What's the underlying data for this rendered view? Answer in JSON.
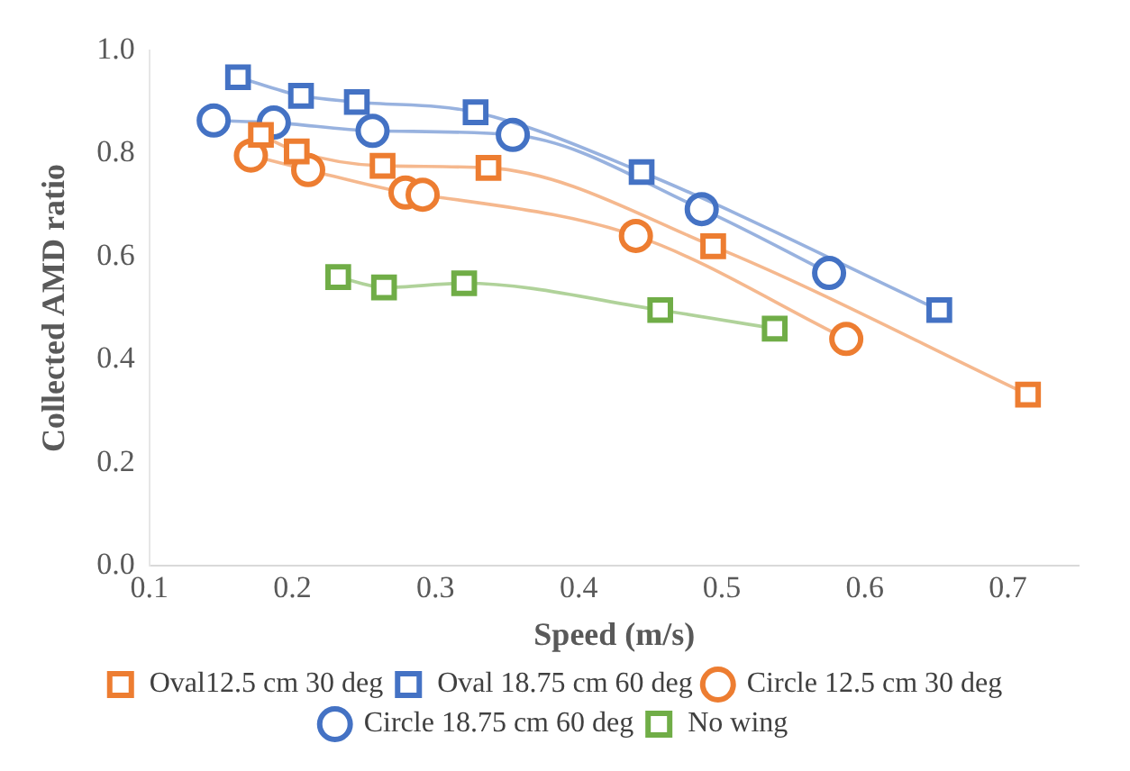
{
  "chart_data": {
    "type": "line",
    "xlabel": "Speed (m/s)",
    "ylabel": "Collected AMD ratio",
    "xlim": [
      0.1,
      0.75
    ],
    "xticks": [
      {
        "value": 0.1,
        "label": "0.1"
      },
      {
        "value": 0.2,
        "label": "0.2"
      },
      {
        "value": 0.3,
        "label": "0.3"
      },
      {
        "value": 0.4,
        "label": "0.4"
      },
      {
        "value": 0.5,
        "label": "0.5"
      },
      {
        "value": 0.6,
        "label": "0.6"
      },
      {
        "value": 0.7,
        "label": "0.7"
      }
    ],
    "ylim": [
      0,
      1
    ],
    "yticks": [
      {
        "value": 0,
        "label": "0.0"
      },
      {
        "value": 0.2,
        "label": "0.2"
      },
      {
        "value": 0.4,
        "label": "0.4"
      },
      {
        "value": 0.6,
        "label": "0.6"
      },
      {
        "value": 0.8,
        "label": "0.8"
      },
      {
        "value": 1,
        "label": "1.0"
      }
    ],
    "grid": false,
    "legend": "bottom",
    "line_style": "solid",
    "series": [
      {
        "name": "No wing",
        "color": "#70ad47",
        "marker": "square",
        "x": [
          0.232,
          0.264,
          0.32,
          0.457,
          0.537
        ],
        "values": [
          0.56,
          0.54,
          0.548,
          0.496,
          0.46
        ]
      },
      {
        "name": "Circle 18.75 cm 60 deg",
        "color": "#4472c4",
        "marker": "circle",
        "x": [
          0.145,
          0.187,
          0.256,
          0.354,
          0.486,
          0.575
        ],
        "values": [
          0.864,
          0.86,
          0.844,
          0.836,
          0.692,
          0.568
        ]
      },
      {
        "name": "Circle 12.5 cm 30 deg",
        "color": "#ed7d31",
        "marker": "circle",
        "x": [
          0.171,
          0.211,
          0.279,
          0.291,
          0.44,
          0.587
        ],
        "values": [
          0.796,
          0.768,
          0.724,
          0.72,
          0.64,
          0.44
        ]
      },
      {
        "name": "Oval 18.75 cm 60 deg",
        "color": "#4472c4",
        "marker": "square",
        "x": [
          0.162,
          0.206,
          0.245,
          0.328,
          0.444,
          0.652
        ],
        "values": [
          0.948,
          0.912,
          0.9,
          0.88,
          0.764,
          0.496
        ]
      },
      {
        "name": "Oval12.5 cm 30 deg",
        "color": "#ed7d31",
        "marker": "square",
        "x": [
          0.178,
          0.203,
          0.263,
          0.337,
          0.494,
          0.714
        ],
        "values": [
          0.836,
          0.804,
          0.776,
          0.772,
          0.62,
          0.332
        ]
      }
    ]
  }
}
